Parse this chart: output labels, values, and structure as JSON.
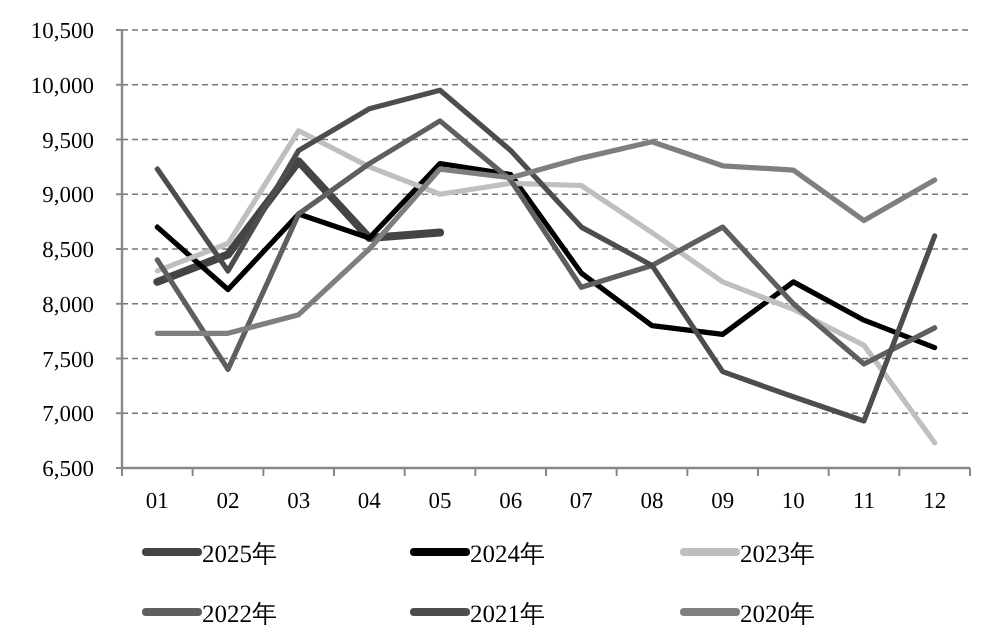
{
  "chart_data": {
    "type": "line",
    "categories": [
      "01",
      "02",
      "03",
      "04",
      "05",
      "06",
      "07",
      "08",
      "09",
      "10",
      "11",
      "12"
    ],
    "series": [
      {
        "name": "2025年",
        "color": "#444444",
        "values": [
          8200,
          8450,
          9300,
          8600,
          8650,
          null,
          null,
          null,
          null,
          null,
          null,
          null
        ]
      },
      {
        "name": "2024年",
        "color": "#000000",
        "values": [
          8700,
          8130,
          8820,
          8600,
          9280,
          9180,
          8280,
          7800,
          7720,
          8200,
          7850,
          7600
        ]
      },
      {
        "name": "2023年",
        "color": "#bfbfbf",
        "values": [
          8300,
          8550,
          9580,
          9250,
          9000,
          9100,
          9080,
          8650,
          8200,
          7950,
          7620,
          6730
        ]
      },
      {
        "name": "2022年",
        "color": "#5f5f5f",
        "values": [
          8400,
          7400,
          8820,
          9280,
          9670,
          9130,
          8150,
          8350,
          8700,
          8000,
          7450,
          7780
        ]
      },
      {
        "name": "2021年",
        "color": "#4d4d4d",
        "values": [
          9230,
          8300,
          9400,
          9780,
          9950,
          9400,
          8700,
          8350,
          7380,
          7150,
          6930,
          8620
        ]
      },
      {
        "name": "2020年",
        "color": "#7f7f7f",
        "values": [
          7730,
          7730,
          7900,
          8500,
          9230,
          9150,
          9330,
          9480,
          9260,
          9220,
          8760,
          9130
        ]
      }
    ],
    "ylim": [
      6500,
      10500
    ],
    "yticks": [
      {
        "value": 6500,
        "label": "6,500"
      },
      {
        "value": 7000,
        "label": "7,000"
      },
      {
        "value": 7500,
        "label": "7,500"
      },
      {
        "value": 8000,
        "label": "8,000"
      },
      {
        "value": 8500,
        "label": "8,500"
      },
      {
        "value": 9000,
        "label": "9,000"
      },
      {
        "value": 9500,
        "label": "9,500"
      },
      {
        "value": 10000,
        "label": "10,000"
      },
      {
        "value": 10500,
        "label": "10,500"
      }
    ],
    "grid": "y",
    "legend": "bottom",
    "marker": "none",
    "line_style": "solid"
  }
}
